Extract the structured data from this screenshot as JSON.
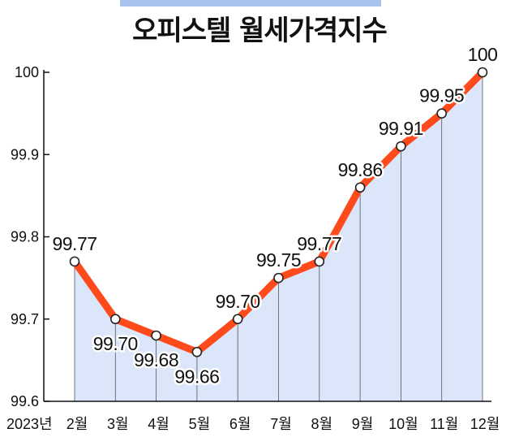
{
  "chart_data": {
    "type": "area",
    "title": "오피스텔 월세가격지수",
    "x_prefix_label": "2023년",
    "categories": [
      "2월",
      "3월",
      "4월",
      "5월",
      "6월",
      "7월",
      "8월",
      "9월",
      "10월",
      "11월",
      "12월"
    ],
    "values": [
      99.77,
      99.7,
      99.68,
      99.66,
      99.7,
      99.75,
      99.77,
      99.86,
      99.91,
      99.95,
      100
    ],
    "data_labels": [
      "99.77",
      "99.70",
      "99.68",
      "99.66",
      "99.70",
      "99.75",
      "99.77",
      "99.86",
      "99.91",
      "99.95",
      "100"
    ],
    "label_position": [
      "above",
      "below",
      "below",
      "below",
      "above",
      "above",
      "above",
      "above",
      "above",
      "above",
      "above"
    ],
    "y_ticks": [
      "99.6",
      "99.7",
      "99.8",
      "99.9",
      "100"
    ],
    "y_tick_values": [
      99.6,
      99.7,
      99.8,
      99.9,
      100
    ],
    "ylim": [
      99.6,
      100
    ],
    "grid": false,
    "colors": {
      "line": "#ff4a1c",
      "area": "#dbe6fb",
      "marker_fill": "#ffffff",
      "marker_stroke": "#222222",
      "header_bar": "#aac3ec"
    }
  }
}
